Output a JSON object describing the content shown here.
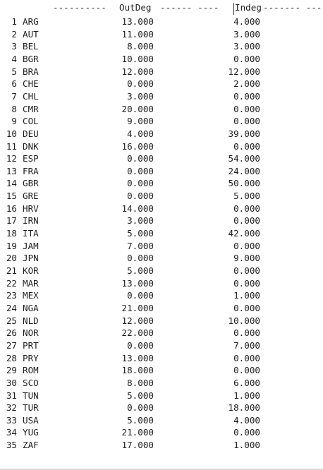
{
  "header": {
    "left_dashes": "----------",
    "col1_label": "OutDeg",
    "mid_dashes": "------ ----",
    "col2_label": "Indeg",
    "right_dashes": "------- ---"
  },
  "rows": [
    {
      "index": "1",
      "country": "ARG",
      "outdeg": "13.000",
      "indeg": "4.000"
    },
    {
      "index": "2",
      "country": "AUT",
      "outdeg": "11.000",
      "indeg": "3.000"
    },
    {
      "index": "3",
      "country": "BEL",
      "outdeg": "8.000",
      "indeg": "3.000"
    },
    {
      "index": "4",
      "country": "BGR",
      "outdeg": "10.000",
      "indeg": "0.000"
    },
    {
      "index": "5",
      "country": "BRA",
      "outdeg": "12.000",
      "indeg": "12.000"
    },
    {
      "index": "6",
      "country": "CHE",
      "outdeg": "0.000",
      "indeg": "2.000"
    },
    {
      "index": "7",
      "country": "CHL",
      "outdeg": "3.000",
      "indeg": "0.000"
    },
    {
      "index": "8",
      "country": "CMR",
      "outdeg": "20.000",
      "indeg": "0.000"
    },
    {
      "index": "9",
      "country": "COL",
      "outdeg": "9.000",
      "indeg": "0.000"
    },
    {
      "index": "10",
      "country": "DEU",
      "outdeg": "4.000",
      "indeg": "39.000"
    },
    {
      "index": "11",
      "country": "DNK",
      "outdeg": "16.000",
      "indeg": "0.000"
    },
    {
      "index": "12",
      "country": "ESP",
      "outdeg": "0.000",
      "indeg": "54.000"
    },
    {
      "index": "13",
      "country": "FRA",
      "outdeg": "0.000",
      "indeg": "24.000"
    },
    {
      "index": "14",
      "country": "GBR",
      "outdeg": "0.000",
      "indeg": "50.000"
    },
    {
      "index": "15",
      "country": "GRE",
      "outdeg": "0.000",
      "indeg": "5.000"
    },
    {
      "index": "16",
      "country": "HRV",
      "outdeg": "14.000",
      "indeg": "0.000"
    },
    {
      "index": "17",
      "country": "IRN",
      "outdeg": "3.000",
      "indeg": "0.000"
    },
    {
      "index": "18",
      "country": "ITA",
      "outdeg": "5.000",
      "indeg": "42.000"
    },
    {
      "index": "19",
      "country": "JAM",
      "outdeg": "7.000",
      "indeg": "0.000"
    },
    {
      "index": "20",
      "country": "JPN",
      "outdeg": "0.000",
      "indeg": "9.000"
    },
    {
      "index": "21",
      "country": "KOR",
      "outdeg": "5.000",
      "indeg": "0.000"
    },
    {
      "index": "22",
      "country": "MAR",
      "outdeg": "13.000",
      "indeg": "0.000"
    },
    {
      "index": "23",
      "country": "MEX",
      "outdeg": "0.000",
      "indeg": "1.000"
    },
    {
      "index": "24",
      "country": "NGA",
      "outdeg": "21.000",
      "indeg": "0.000"
    },
    {
      "index": "25",
      "country": "NLD",
      "outdeg": "12.000",
      "indeg": "10.000"
    },
    {
      "index": "26",
      "country": "NOR",
      "outdeg": "22.000",
      "indeg": "0.000"
    },
    {
      "index": "27",
      "country": "PRT",
      "outdeg": "0.000",
      "indeg": "7.000"
    },
    {
      "index": "28",
      "country": "PRY",
      "outdeg": "13.000",
      "indeg": "0.000"
    },
    {
      "index": "29",
      "country": "ROM",
      "outdeg": "18.000",
      "indeg": "0.000"
    },
    {
      "index": "30",
      "country": "SCO",
      "outdeg": "8.000",
      "indeg": "6.000"
    },
    {
      "index": "31",
      "country": "TUN",
      "outdeg": "5.000",
      "indeg": "1.000"
    },
    {
      "index": "32",
      "country": "TUR",
      "outdeg": "0.000",
      "indeg": "18.000"
    },
    {
      "index": "33",
      "country": "USA",
      "outdeg": "5.000",
      "indeg": "4.000"
    },
    {
      "index": "34",
      "country": "YUG",
      "outdeg": "21.000",
      "indeg": "0.000"
    },
    {
      "index": "35",
      "country": "ZAF",
      "outdeg": "17.000",
      "indeg": "1.000"
    }
  ]
}
